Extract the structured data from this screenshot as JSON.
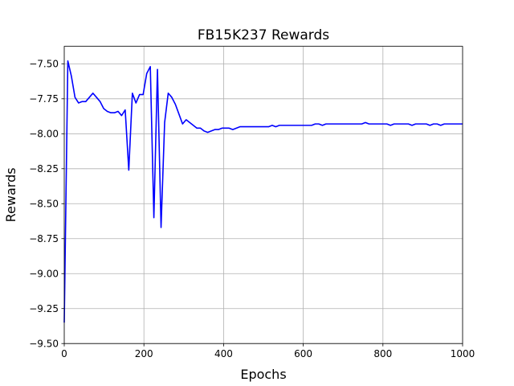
{
  "chart_data": {
    "type": "line",
    "title": "FB15K237 Rewards",
    "xlabel": "Epochs",
    "ylabel": "Rewards",
    "xlim": [
      0,
      1000
    ],
    "ylim": [
      -9.5,
      -7.375
    ],
    "xticks": [
      0,
      200,
      400,
      600,
      800,
      1000
    ],
    "yticks": [
      -9.5,
      -9.25,
      -9.0,
      -8.75,
      -8.5,
      -8.25,
      -8.0,
      -7.75,
      -7.5
    ],
    "grid": true,
    "legend": "none",
    "series": [
      {
        "color": "#0000ff",
        "x": [
          0,
          9,
          18,
          27,
          36,
          45,
          54,
          63,
          72,
          81,
          90,
          99,
          108,
          117,
          126,
          135,
          144,
          153,
          162,
          171,
          180,
          189,
          198,
          207,
          216,
          225,
          234,
          243,
          252,
          261,
          270,
          279,
          288,
          297,
          306,
          315,
          324,
          333,
          342,
          351,
          360,
          369,
          378,
          387,
          396,
          405,
          414,
          423,
          432,
          441,
          450,
          459,
          468,
          477,
          486,
          495,
          504,
          513,
          522,
          531,
          540,
          549,
          558,
          567,
          576,
          585,
          594,
          603,
          612,
          621,
          630,
          639,
          648,
          657,
          666,
          675,
          684,
          693,
          702,
          711,
          720,
          729,
          738,
          747,
          756,
          765,
          774,
          783,
          792,
          801,
          810,
          819,
          828,
          837,
          846,
          855,
          864,
          873,
          882,
          891,
          900,
          909,
          918,
          927,
          936,
          945,
          954,
          963,
          972,
          981,
          990,
          1000
        ],
        "values": [
          -9.35,
          -7.48,
          -7.59,
          -7.74,
          -7.78,
          -7.77,
          -7.77,
          -7.74,
          -7.71,
          -7.74,
          -7.77,
          -7.82,
          -7.84,
          -7.85,
          -7.85,
          -7.84,
          -7.87,
          -7.83,
          -8.26,
          -7.71,
          -7.78,
          -7.72,
          -7.72,
          -7.57,
          -7.52,
          -8.6,
          -7.54,
          -8.67,
          -7.92,
          -7.71,
          -7.74,
          -7.79,
          -7.86,
          -7.93,
          -7.9,
          -7.92,
          -7.94,
          -7.96,
          -7.96,
          -7.98,
          -7.99,
          -7.98,
          -7.97,
          -7.97,
          -7.96,
          -7.96,
          -7.96,
          -7.97,
          -7.96,
          -7.95,
          -7.95,
          -7.95,
          -7.95,
          -7.95,
          -7.95,
          -7.95,
          -7.95,
          -7.95,
          -7.94,
          -7.95,
          -7.94,
          -7.94,
          -7.94,
          -7.94,
          -7.94,
          -7.94,
          -7.94,
          -7.94,
          -7.94,
          -7.94,
          -7.93,
          -7.93,
          -7.94,
          -7.93,
          -7.93,
          -7.93,
          -7.93,
          -7.93,
          -7.93,
          -7.93,
          -7.93,
          -7.93,
          -7.93,
          -7.93,
          -7.92,
          -7.93,
          -7.93,
          -7.93,
          -7.93,
          -7.93,
          -7.93,
          -7.94,
          -7.93,
          -7.93,
          -7.93,
          -7.93,
          -7.93,
          -7.94,
          -7.93,
          -7.93,
          -7.93,
          -7.93,
          -7.94,
          -7.93,
          -7.93,
          -7.94,
          -7.93,
          -7.93,
          -7.93,
          -7.93,
          -7.93,
          -7.93
        ]
      }
    ]
  }
}
